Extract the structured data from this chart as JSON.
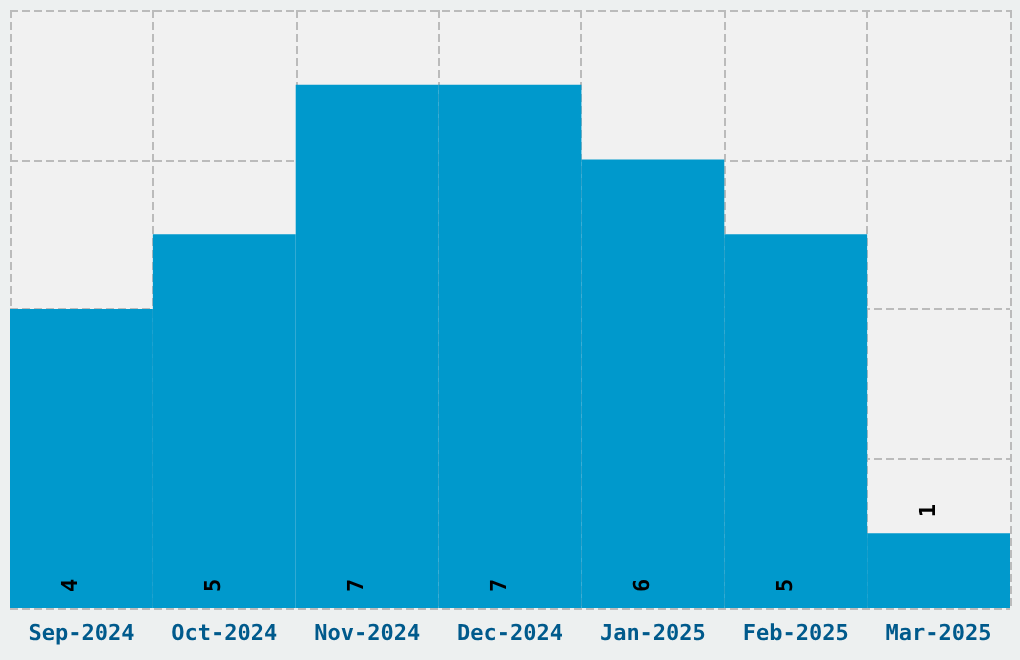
{
  "chart_data": {
    "type": "bar",
    "categories": [
      "Sep-2024",
      "Oct-2024",
      "Nov-2024",
      "Dec-2024",
      "Jan-2025",
      "Feb-2025",
      "Mar-2025"
    ],
    "values": [
      4,
      5,
      7,
      7,
      6,
      5,
      1
    ],
    "color": "#0099cc",
    "data_labels": true,
    "grid": true
  }
}
